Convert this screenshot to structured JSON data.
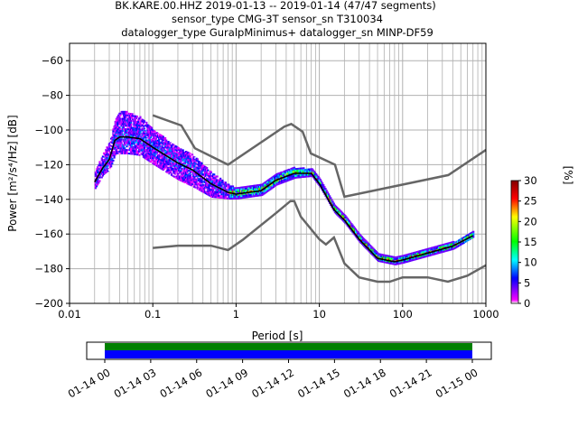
{
  "chart_data": {
    "type": "heatmap",
    "title_lines": [
      "BK.KARE.00.HHZ   2019-01-13 -- 2019-01-14  (47/47 segments)",
      "sensor_type CMG-3T sensor_sn T310034",
      "datalogger_type GuralpMinimus+ datalogger_sn MINP-DF59"
    ],
    "xlabel": "Period [s]",
    "ylabel": "Power [m²/s⁴/Hz] [dB]",
    "xscale": "log",
    "xlim": [
      0.01,
      1000
    ],
    "ylim": [
      -200,
      -50
    ],
    "xticks": [
      0.01,
      0.1,
      1,
      10,
      100,
      1000
    ],
    "xtick_labels": [
      "0.01",
      "0.1",
      "1",
      "10",
      "100",
      "1000"
    ],
    "yticks": [
      -200,
      -180,
      -160,
      -140,
      -120,
      -100,
      -80,
      -60
    ],
    "ytick_labels": [
      "−200",
      "−180",
      "−160",
      "−140",
      "−120",
      "−100",
      "−80",
      "−60"
    ],
    "grid": true,
    "mean_curve": {
      "period": [
        0.02,
        0.025,
        0.03,
        0.035,
        0.04,
        0.05,
        0.07,
        0.1,
        0.2,
        0.3,
        0.5,
        0.8,
        1,
        2,
        3,
        5,
        8,
        10,
        15,
        20,
        30,
        50,
        80,
        100,
        200,
        400,
        700
      ],
      "db": [
        -130,
        -122,
        -117,
        -106,
        -104,
        -104,
        -105,
        -110,
        -119,
        -123,
        -131,
        -136,
        -137,
        -135,
        -129,
        -125,
        -125,
        -131,
        -146,
        -152,
        -163,
        -174,
        -176,
        -175,
        -171,
        -167,
        -161
      ]
    },
    "spread_above": [
      6,
      8,
      10,
      12,
      14,
      14,
      12,
      10,
      8,
      8,
      6,
      4,
      3,
      3,
      3,
      3,
      2,
      2,
      2,
      2,
      2,
      2,
      2,
      2,
      2,
      2,
      2
    ],
    "spread_below": [
      4,
      4,
      6,
      8,
      10,
      10,
      10,
      10,
      10,
      10,
      8,
      4,
      3,
      3,
      3,
      3,
      2,
      2,
      2,
      2,
      2,
      2,
      2,
      2,
      2,
      2,
      1
    ],
    "nhnm": {
      "period": [
        0.1,
        0.22,
        0.32,
        0.8,
        3.8,
        4.6,
        6.3,
        7.9,
        15.4,
        20,
        354,
        1000
      ],
      "db": [
        -91.5,
        -97.4,
        -110.5,
        -120,
        -98,
        -96.5,
        -101,
        -113.5,
        -120,
        -138.5,
        -126,
        -111.5
      ]
    },
    "nlnm": {
      "period": [
        0.1,
        0.2,
        0.5,
        0.8,
        1.2,
        3,
        4.5,
        5,
        6,
        10,
        12,
        15,
        20,
        30,
        50,
        70,
        100,
        200,
        350,
        600,
        1000
      ],
      "db": [
        -168,
        -166.7,
        -166.7,
        -169.2,
        -163.4,
        -148,
        -141,
        -141,
        -150,
        -163,
        -166,
        -162,
        -177,
        -185,
        -187.5,
        -187.5,
        -185,
        -185,
        -187.5,
        -184,
        -178
      ]
    },
    "colorbar": {
      "label": "[%]",
      "range": [
        0,
        30
      ],
      "ticks": [
        "0",
        "5",
        "10",
        "15",
        "20",
        "25",
        "30"
      ]
    },
    "coverage": {
      "tick_labels": [
        "01-14 00",
        "01-14 03",
        "01-14 06",
        "01-14 09",
        "01-14 12",
        "01-14 15",
        "01-14 18",
        "01-14 21",
        "01-15 00"
      ],
      "data_fraction": 1.0,
      "colors": {
        "processed": "#008000",
        "available": "#0000ff"
      }
    },
    "colors": {
      "mean": "#000000",
      "noise_models": "#666666",
      "grid": "#b0b0b0"
    }
  }
}
